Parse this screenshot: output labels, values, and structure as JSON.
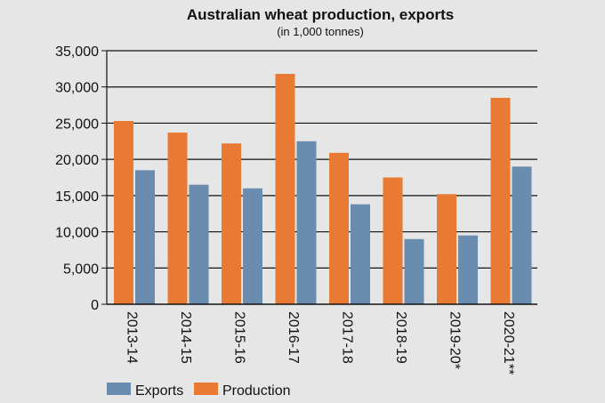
{
  "chart_data": {
    "type": "bar",
    "title": "Australian wheat  production, exports",
    "subtitle": "(in 1,000 tonnes)",
    "categories": [
      "2013-14",
      "2014-15",
      "2015-16",
      "2016-17",
      "2017-18",
      "2018-19",
      "2019-20*",
      "2020-21**"
    ],
    "series": [
      {
        "name": "Exports",
        "color": "#6a8cae",
        "values": [
          18500,
          16500,
          16000,
          22500,
          13800,
          9000,
          9500,
          19000
        ]
      },
      {
        "name": "Production",
        "color": "#e87a33",
        "values": [
          25300,
          23700,
          22200,
          31800,
          20900,
          17500,
          15200,
          28500
        ]
      }
    ],
    "bar_order": [
      "Production",
      "Exports"
    ],
    "ylim": [
      0,
      35000
    ],
    "yticks": [
      0,
      5000,
      10000,
      15000,
      20000,
      25000,
      30000,
      35000
    ],
    "ytick_labels": [
      "0",
      "5,000",
      "10,000",
      "15,000",
      "20,000",
      "25,000",
      "30,000",
      "35,000"
    ],
    "grid": true,
    "legend_position": "bottom-left",
    "xlabel": "",
    "ylabel": ""
  }
}
